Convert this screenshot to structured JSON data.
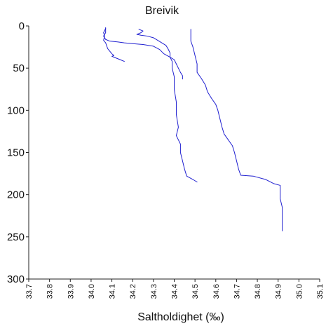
{
  "chart_data": {
    "type": "line",
    "title": "Breivik",
    "xlabel": "Saltholdighet (‰)",
    "ylabel": "",
    "xlim": [
      33.7,
      35.1
    ],
    "ylim": [
      300,
      0
    ],
    "y_inverted": true,
    "x_ticks": [
      "33.7",
      "33.8",
      "33.9",
      "34.0",
      "34.1",
      "34.2",
      "34.3",
      "34.4",
      "34.5",
      "34.6",
      "34.7",
      "34.8",
      "34.9",
      "35.0",
      "35.1"
    ],
    "y_ticks": [
      "0",
      "50",
      "100",
      "150",
      "200",
      "250",
      "300"
    ],
    "grid": false,
    "legend": "none",
    "line_color": "#1f1fd0",
    "series": [
      {
        "points": [
          [
            34.07,
            3
          ],
          [
            34.06,
            8
          ],
          [
            34.065,
            12
          ],
          [
            34.06,
            17
          ],
          [
            34.07,
            20
          ],
          [
            34.08,
            27
          ],
          [
            34.09,
            30
          ],
          [
            34.1,
            33
          ],
          [
            34.11,
            35
          ],
          [
            34.1,
            36
          ],
          [
            34.11,
            37
          ],
          [
            34.12,
            38
          ],
          [
            34.14,
            40
          ],
          [
            34.16,
            42
          ]
        ]
      },
      {
        "points": [
          [
            34.07,
            2
          ],
          [
            34.07,
            8
          ],
          [
            34.06,
            12
          ],
          [
            34.07,
            16
          ],
          [
            34.09,
            18
          ],
          [
            34.13,
            19
          ],
          [
            34.16,
            20
          ],
          [
            34.2,
            21
          ],
          [
            34.25,
            22
          ],
          [
            34.3,
            24
          ],
          [
            34.33,
            28
          ],
          [
            34.35,
            33
          ],
          [
            34.38,
            37
          ],
          [
            34.4,
            40
          ],
          [
            34.41,
            45
          ],
          [
            34.42,
            50
          ],
          [
            34.43,
            55
          ],
          [
            34.44,
            59
          ],
          [
            34.44,
            63
          ]
        ]
      },
      {
        "points": [
          [
            34.23,
            4
          ],
          [
            34.25,
            6
          ],
          [
            34.24,
            8
          ],
          [
            34.22,
            10
          ],
          [
            34.24,
            11
          ],
          [
            34.27,
            12
          ],
          [
            34.3,
            14
          ],
          [
            34.32,
            17
          ],
          [
            34.34,
            20
          ],
          [
            34.36,
            23
          ],
          [
            34.37,
            27
          ],
          [
            34.38,
            32
          ],
          [
            34.38,
            37
          ],
          [
            34.39,
            42
          ],
          [
            34.39,
            50
          ],
          [
            34.4,
            60
          ],
          [
            34.4,
            75
          ],
          [
            34.41,
            90
          ],
          [
            34.41,
            105
          ],
          [
            34.42,
            120
          ],
          [
            34.41,
            130
          ],
          [
            34.43,
            140
          ],
          [
            34.43,
            150
          ],
          [
            34.44,
            160
          ],
          [
            34.45,
            170
          ],
          [
            34.46,
            178
          ],
          [
            34.49,
            182
          ],
          [
            34.51,
            185
          ]
        ]
      },
      {
        "points": [
          [
            34.48,
            4
          ],
          [
            34.48,
            10
          ],
          [
            34.48,
            18
          ],
          [
            34.49,
            25
          ],
          [
            34.5,
            35
          ],
          [
            34.51,
            45
          ],
          [
            34.51,
            55
          ],
          [
            34.53,
            62
          ],
          [
            34.55,
            70
          ],
          [
            34.56,
            78
          ],
          [
            34.58,
            86
          ],
          [
            34.6,
            93
          ],
          [
            34.61,
            100
          ],
          [
            34.62,
            110
          ],
          [
            34.63,
            120
          ],
          [
            34.64,
            128
          ],
          [
            34.66,
            135
          ],
          [
            34.68,
            142
          ],
          [
            34.69,
            150
          ],
          [
            34.7,
            160
          ],
          [
            34.71,
            170
          ],
          [
            34.72,
            177
          ],
          [
            34.78,
            178
          ],
          [
            34.84,
            182
          ],
          [
            34.88,
            187
          ],
          [
            34.91,
            189
          ],
          [
            34.91,
            195
          ],
          [
            34.91,
            205
          ],
          [
            34.92,
            215
          ],
          [
            34.92,
            225
          ],
          [
            34.92,
            235
          ],
          [
            34.92,
            243
          ]
        ]
      }
    ]
  }
}
